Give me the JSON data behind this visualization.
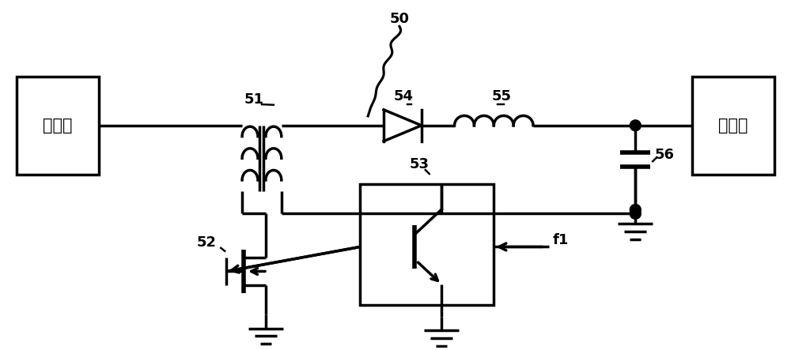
{
  "bg_color": "#ffffff",
  "lc": "#000000",
  "lw": 2.5,
  "input_label": "输入端",
  "output_label": "输出端",
  "label_50": "50",
  "label_51": "51",
  "label_52": "52",
  "label_53": "53",
  "label_54": "54",
  "label_55": "55",
  "label_56": "56",
  "label_f1": "f1"
}
